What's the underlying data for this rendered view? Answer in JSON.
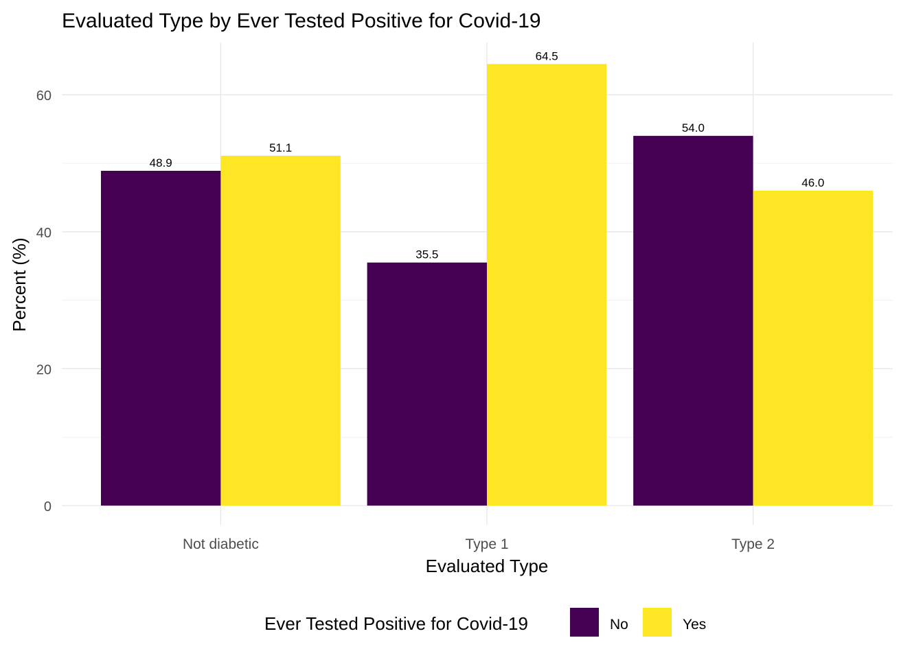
{
  "chart_data": {
    "type": "bar",
    "title": "Evaluated Type by Ever Tested Positive for Covid-19",
    "xlabel": "Evaluated Type",
    "ylabel": "Percent (%)",
    "categories": [
      "Not diabetic",
      "Type 1",
      "Type 2"
    ],
    "series": [
      {
        "name": "No",
        "values": [
          48.9,
          35.5,
          54.0
        ],
        "color": "#440154"
      },
      {
        "name": "Yes",
        "values": [
          51.1,
          64.5,
          46.0
        ],
        "color": "#FDE725"
      }
    ],
    "value_labels": [
      [
        "48.9",
        "35.5",
        "54.0"
      ],
      [
        "51.1",
        "64.5",
        "46.0"
      ]
    ],
    "ylim": [
      0,
      67.7
    ],
    "yticks": [
      0,
      20,
      40,
      60
    ],
    "grid": true,
    "legend": {
      "title": "Ever Tested Positive for Covid-19",
      "placement": "bottom"
    }
  }
}
